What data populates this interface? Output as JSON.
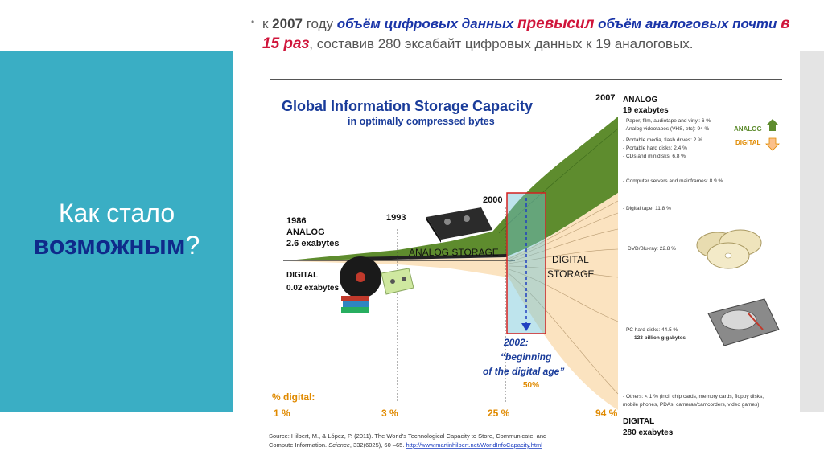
{
  "sidebar": {
    "title_line1": "Как стало",
    "title_line2_bold": "возможным",
    "title_line2_tail": "?"
  },
  "header": {
    "bullet": "•",
    "p1": "к ",
    "year": "2007",
    "p2": " году ",
    "p3": "объём цифровых данных ",
    "p4": "превысил",
    "p5": " объём аналоговых почти ",
    "p6": "в 15 раз",
    "p7": ", составив 280 эксабайт цифровых данных к 19 аналоговых."
  },
  "chart": {
    "title": "Global Information Storage Capacity",
    "subtitle": "in optimally compressed bytes",
    "year1986": "1986",
    "analog1986_label": "ANALOG",
    "analog1986_value": "2.6 exabytes",
    "digital1986_label": "DIGITAL",
    "digital1986_value": "0.02 exabytes",
    "year1993": "1993",
    "year2000": "2000",
    "year2007": "2007",
    "analog_storage": "ANALOG STORAGE",
    "digital_storage_1": "DIGITAL",
    "digital_storage_2": "STORAGE",
    "note_year": "2002:",
    "note_line1": "“beginning",
    "note_line2": "of the digital age”",
    "note_pct": "50%",
    "pct_title": "% digital:",
    "pct_values": [
      "1 %",
      "3 %",
      "25 %",
      "94 %"
    ],
    "analog2007_label": "ANALOG",
    "analog2007_value": "19 exabytes",
    "digital2007_label": "DIGITAL",
    "digital2007_value": "280 exabytes",
    "legend_analog": "ANALOG",
    "legend_digital": "DIGITAL",
    "analog_items": [
      "- Paper, film, audiotape and vinyl: 6 %",
      "- Analog videotapes (VHS, etc): 94 %"
    ],
    "digital_items": [
      "- Portable media, flash drives: 2 %",
      "- Portable hard disks: 2.4 %",
      "- CDs and minidisks: 6.8 %",
      "- Computer  servers and mainframes: 8.9 %",
      "- Digital tape: 11.8 %",
      "DVD/Blu-ray: 22.8 %",
      "- PC hard disks: 44.5 %",
      "123 billion gigabytes",
      "- Others: <  1 % (incl. chip cards, memory cards, floppy disks,",
      "mobile phones, PDAs, cameras/camcorders, video games)"
    ],
    "source_line1": "Source: Hilbert, M., & López, P. (2011). The World’s Technological Capacity to Store, Communicate, and",
    "source_line2a": "Compute Information. ",
    "source_line2b": "Science",
    "source_line2c": ", 332(6025), 60 –65. ",
    "source_link": "http://www.martinhilbert.net/WorldInfoCapacity.html",
    "colors": {
      "teal": "#3aaec4",
      "navy": "#0f2a8a",
      "analog_green": "#5e8c2e",
      "digital_peach": "#fbe3c0",
      "orange": "#e08a00",
      "red": "#d0153b"
    }
  }
}
